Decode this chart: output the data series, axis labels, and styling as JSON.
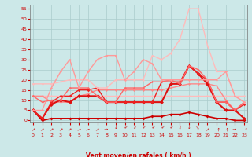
{
  "xlabel": "Vent moyen/en rafales ( km/h )",
  "bg_color": "#cce8e8",
  "grid_color": "#aacccc",
  "x_ticks": [
    0,
    1,
    2,
    3,
    4,
    5,
    6,
    7,
    8,
    9,
    10,
    11,
    12,
    13,
    14,
    15,
    16,
    17,
    18,
    19,
    20,
    21,
    22,
    23
  ],
  "y_ticks": [
    0,
    5,
    10,
    15,
    20,
    25,
    30,
    35,
    40,
    45,
    50,
    55
  ],
  "ylim": [
    -1,
    57
  ],
  "xlim": [
    -0.3,
    23.3
  ],
  "series": [
    {
      "y": [
        5,
        0,
        1,
        1,
        1,
        1,
        1,
        1,
        1,
        1,
        1,
        1,
        1,
        2,
        2,
        3,
        3,
        4,
        3,
        2,
        1,
        1,
        0,
        0
      ],
      "color": "#cc0000",
      "lw": 1.2,
      "marker": "D",
      "ms": 2.0
    },
    {
      "y": [
        12,
        12,
        12,
        12,
        12,
        12,
        12,
        12,
        12,
        12,
        12,
        12,
        12,
        12,
        12,
        12,
        12,
        12,
        12,
        12,
        12,
        12,
        12,
        12
      ],
      "color": "#ffbbbb",
      "lw": 1.0,
      "marker": "D",
      "ms": 1.5
    },
    {
      "y": [
        12,
        12,
        9,
        9,
        9,
        12,
        13,
        15,
        15,
        15,
        15,
        15,
        15,
        15,
        15,
        16,
        17,
        18,
        18,
        18,
        17,
        10,
        5,
        9
      ],
      "color": "#ff8888",
      "lw": 1.0,
      "marker": "D",
      "ms": 1.5
    },
    {
      "y": [
        5,
        1,
        8,
        10,
        9,
        12,
        12,
        12,
        9,
        9,
        9,
        9,
        9,
        9,
        9,
        18,
        18,
        27,
        23,
        18,
        9,
        5,
        5,
        1
      ],
      "color": "#dd1111",
      "lw": 1.5,
      "marker": "D",
      "ms": 2.5
    },
    {
      "y": [
        5,
        1,
        9,
        12,
        12,
        15,
        15,
        16,
        9,
        9,
        9,
        9,
        9,
        9,
        19,
        19,
        19,
        27,
        23,
        20,
        9,
        9,
        5,
        8
      ],
      "color": "#ee2222",
      "lw": 1.0,
      "marker": "D",
      "ms": 1.8
    },
    {
      "y": [
        12,
        9,
        10,
        10,
        16,
        16,
        16,
        12,
        9,
        9,
        16,
        16,
        16,
        19,
        19,
        20,
        18,
        27,
        25,
        20,
        9,
        9,
        5,
        9
      ],
      "color": "#ff6666",
      "lw": 1.0,
      "marker": "D",
      "ms": 1.5
    },
    {
      "y": [
        18,
        18,
        18,
        19,
        20,
        20,
        20,
        16,
        16,
        20,
        20,
        20,
        20,
        32,
        30,
        33,
        40,
        55,
        55,
        37,
        24,
        24,
        12,
        9
      ],
      "color": "#ffbbbb",
      "lw": 1.0,
      "marker": "D",
      "ms": 1.5
    },
    {
      "y": [
        5,
        5,
        16,
        24,
        30,
        16,
        24,
        30,
        32,
        32,
        20,
        24,
        30,
        28,
        20,
        20,
        20,
        20,
        20,
        20,
        20,
        24,
        12,
        9
      ],
      "color": "#ff9999",
      "lw": 1.0,
      "marker": "D",
      "ms": 1.5
    }
  ],
  "arrow_angles": [
    225,
    225,
    225,
    225,
    225,
    210,
    210,
    225,
    180,
    90,
    45,
    60,
    45,
    45,
    45,
    45,
    80,
    90,
    135,
    225,
    270,
    270,
    180,
    270
  ],
  "arrow_color": "#cc0000",
  "tick_color": "#cc0000",
  "label_color": "#cc0000"
}
